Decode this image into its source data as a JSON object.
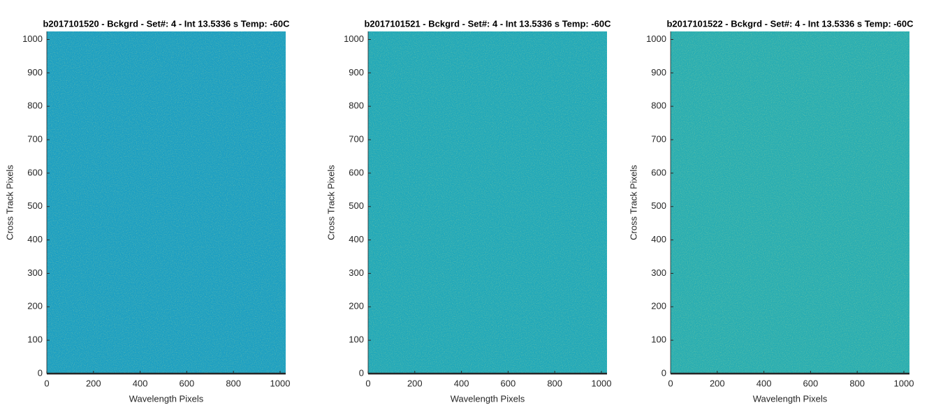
{
  "chart_data": [
    {
      "type": "image",
      "title": "b2017101520 - Bckgrd - Set#: 4 - Int 13.5336 s Temp: -60C",
      "xlabel": "Wavelength Pixels",
      "ylabel": "Cross Track Pixels",
      "xlim": [
        0,
        1024
      ],
      "ylim": [
        0,
        1024
      ],
      "xticks": [
        0,
        200,
        400,
        600,
        800,
        1000
      ],
      "yticks": [
        0,
        100,
        200,
        300,
        400,
        500,
        600,
        700,
        800,
        900,
        1000
      ],
      "color": "#1d9fc2"
    },
    {
      "type": "image",
      "title": "b2017101521 - Bckgrd - Set#: 4 - Int 13.5336 s Temp: -60C",
      "xlabel": "Wavelength Pixels",
      "ylabel": "Cross Track Pixels",
      "xlim": [
        0,
        1024
      ],
      "ylim": [
        0,
        1024
      ],
      "xticks": [
        0,
        200,
        400,
        600,
        800,
        1000
      ],
      "yticks": [
        0,
        100,
        200,
        300,
        400,
        500,
        600,
        700,
        800,
        900,
        1000
      ],
      "color": "#22a8b9"
    },
    {
      "type": "image",
      "title": "b2017101522 - Bckgrd - Set#: 4 - Int 13.5336 s Temp: -60C",
      "xlabel": "Wavelength Pixels",
      "ylabel": "Cross Track Pixels",
      "xlim": [
        0,
        1024
      ],
      "ylim": [
        0,
        1024
      ],
      "xticks": [
        0,
        200,
        400,
        600,
        800,
        1000
      ],
      "yticks": [
        0,
        100,
        200,
        300,
        400,
        500,
        600,
        700,
        800,
        900,
        1000
      ],
      "color": "#29adb2"
    }
  ]
}
